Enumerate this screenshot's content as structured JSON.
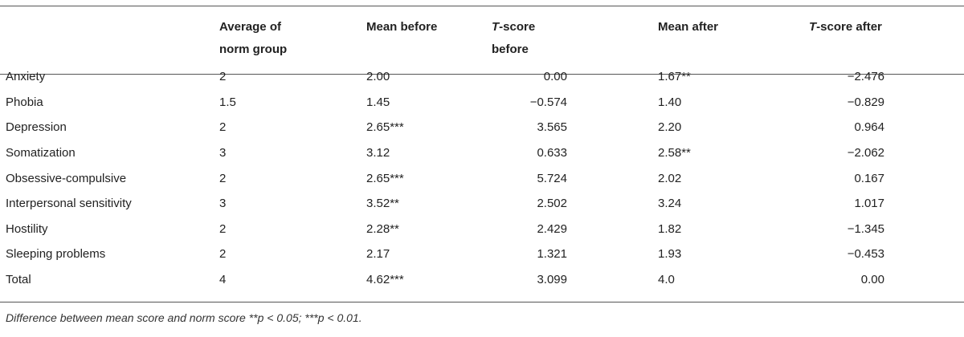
{
  "headers": {
    "c0": "",
    "c1_line1": "Average of",
    "c1_line2": "norm group",
    "c2": "Mean before",
    "c3_t": "T",
    "c3_line1": "-score",
    "c3_line2": "before",
    "c4": "Mean after",
    "c5_t": "T",
    "c5_rest": "-score after"
  },
  "rows": [
    {
      "label": "Anxiety",
      "norm": "2",
      "mean_before": "2.00",
      "t_before": "0.00",
      "mean_after": "1.67**",
      "t_after": "−2.476"
    },
    {
      "label": "Phobia",
      "norm": "1.5",
      "mean_before": "1.45",
      "t_before": "−0.574",
      "mean_after": "1.40",
      "t_after": "−0.829"
    },
    {
      "label": "Depression",
      "norm": "2",
      "mean_before": "2.65***",
      "t_before": "3.565",
      "mean_after": "2.20",
      "t_after": "0.964"
    },
    {
      "label": "Somatization",
      "norm": "3",
      "mean_before": "3.12",
      "t_before": "0.633",
      "mean_after": "2.58**",
      "t_after": "−2.062"
    },
    {
      "label": "Obsessive-compulsive",
      "norm": "2",
      "mean_before": "2.65***",
      "t_before": "5.724",
      "mean_after": "2.02",
      "t_after": "0.167"
    },
    {
      "label": "Interpersonal sensitivity",
      "norm": "3",
      "mean_before": "3.52**",
      "t_before": "2.502",
      "mean_after": "3.24",
      "t_after": "1.017"
    },
    {
      "label": "Hostility",
      "norm": "2",
      "mean_before": "2.28**",
      "t_before": "2.429",
      "mean_after": "1.82",
      "t_after": "−1.345"
    },
    {
      "label": "Sleeping problems",
      "norm": "2",
      "mean_before": "2.17",
      "t_before": "1.321",
      "mean_after": "1.93",
      "t_after": "−0.453"
    },
    {
      "label": "Total",
      "norm": "4",
      "mean_before": "4.62***",
      "t_before": "3.099",
      "mean_after": "4.0",
      "t_after": "0.00"
    }
  ],
  "footnote": {
    "text1": "Difference between mean score and norm score **",
    "p1": "p",
    "text2": " < 0.05; ***",
    "p2": "p",
    "text3": " < 0.01."
  }
}
